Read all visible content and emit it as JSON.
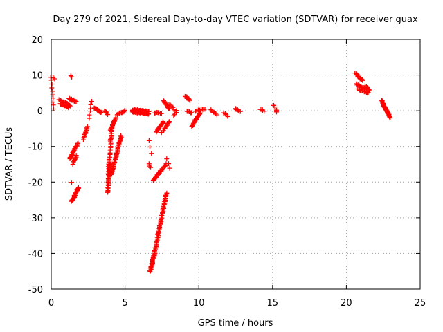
{
  "chart_data": {
    "type": "scatter",
    "title": "Day 279 of 2021, Sidereal Day-to-day VTEC variation (SDTVAR) for receiver guax",
    "xlabel": "GPS time / hours",
    "ylabel": "SDTVAR / TECUs",
    "xlim": [
      0,
      25
    ],
    "ylim": [
      -50,
      20
    ],
    "xticks": [
      0,
      5,
      10,
      15,
      20,
      25
    ],
    "yticks": [
      -50,
      -40,
      -30,
      -20,
      -10,
      0,
      10,
      20
    ],
    "xtick_labels": [
      "0",
      "5",
      "10",
      "15",
      "20",
      "25"
    ],
    "ytick_labels": [
      "-50",
      "-40",
      "-30",
      "-20",
      "-10",
      "0",
      "10",
      "20"
    ],
    "grid": true,
    "marker": "+",
    "color": "#ff0000",
    "segments": [
      {
        "x0": 0.0,
        "x1": 0.15,
        "y0": 9.5,
        "y1": 0.5,
        "n": 10
      },
      {
        "x0": 0.1,
        "x1": 0.2,
        "y0": 9.5,
        "y1": 9.0,
        "n": 3
      },
      {
        "x0": 0.6,
        "x1": 1.2,
        "y0": 2.0,
        "y1": 1.0,
        "n": 30
      },
      {
        "x0": 0.55,
        "x1": 1.3,
        "y0": 3.0,
        "y1": 1.5,
        "n": 20
      },
      {
        "x0": 1.2,
        "x1": 1.7,
        "y0": 3.5,
        "y1": 2.5,
        "n": 15
      },
      {
        "x0": 1.3,
        "x1": 1.4,
        "y0": 9.8,
        "y1": 9.5,
        "n": 2
      },
      {
        "x0": 1.25,
        "x1": 1.8,
        "y0": -13.5,
        "y1": -9.0,
        "n": 25
      },
      {
        "x0": 1.4,
        "x1": 1.85,
        "y0": -25.5,
        "y1": -21.5,
        "n": 25
      },
      {
        "x0": 1.35,
        "x1": 1.4,
        "y0": -20.0,
        "y1": -20.0,
        "n": 1
      },
      {
        "x0": 1.45,
        "x1": 1.7,
        "y0": -15.0,
        "y1": -12.5,
        "n": 8
      },
      {
        "x0": 2.15,
        "x1": 2.45,
        "y0": -8.0,
        "y1": -4.5,
        "n": 15
      },
      {
        "x0": 2.55,
        "x1": 2.75,
        "y0": -2.0,
        "y1": 2.5,
        "n": 6
      },
      {
        "x0": 2.9,
        "x1": 3.4,
        "y0": 0.8,
        "y1": -0.5,
        "n": 15
      },
      {
        "x0": 3.6,
        "x1": 3.8,
        "y0": 0.0,
        "y1": -1.0,
        "n": 5
      },
      {
        "x0": 3.8,
        "x1": 4.0,
        "y0": -23.0,
        "y1": -15.0,
        "n": 35
      },
      {
        "x0": 3.85,
        "x1": 4.1,
        "y0": -18.0,
        "y1": -5.0,
        "n": 30
      },
      {
        "x0": 4.0,
        "x1": 4.4,
        "y0": -5.5,
        "y1": -2.0,
        "n": 20
      },
      {
        "x0": 4.05,
        "x1": 4.75,
        "y0": -18.0,
        "y1": -7.0,
        "n": 45
      },
      {
        "x0": 4.5,
        "x1": 5.0,
        "y0": -1.0,
        "y1": 0.0,
        "n": 10
      },
      {
        "x0": 5.5,
        "x1": 6.6,
        "y0": -0.3,
        "y1": -0.8,
        "n": 45
      },
      {
        "x0": 5.5,
        "x1": 6.6,
        "y0": 0.3,
        "y1": -0.2,
        "n": 40
      },
      {
        "x0": 6.6,
        "x1": 6.8,
        "y0": -8.5,
        "y1": -12.0,
        "n": 3
      },
      {
        "x0": 6.65,
        "x1": 6.7,
        "y0": -15.0,
        "y1": -16.0,
        "n": 3
      },
      {
        "x0": 6.7,
        "x1": 7.0,
        "y0": -45.0,
        "y1": -40.0,
        "n": 25
      },
      {
        "x0": 7.0,
        "x1": 7.8,
        "y0": -40.0,
        "y1": -23.0,
        "n": 60
      },
      {
        "x0": 6.9,
        "x1": 7.8,
        "y0": -19.5,
        "y1": -15.0,
        "n": 25
      },
      {
        "x0": 7.1,
        "x1": 7.6,
        "y0": -6.0,
        "y1": -3.0,
        "n": 18
      },
      {
        "x0": 7.0,
        "x1": 7.5,
        "y0": -0.5,
        "y1": -0.8,
        "n": 10
      },
      {
        "x0": 7.5,
        "x1": 8.0,
        "y0": -6.0,
        "y1": -3.0,
        "n": 12
      },
      {
        "x0": 7.6,
        "x1": 8.0,
        "y0": 2.8,
        "y1": 0.5,
        "n": 12
      },
      {
        "x0": 7.85,
        "x1": 8.05,
        "y0": -13.5,
        "y1": -16.0,
        "n": 3
      },
      {
        "x0": 8.0,
        "x1": 8.4,
        "y0": 2.0,
        "y1": 0.0,
        "n": 6
      },
      {
        "x0": 8.3,
        "x1": 8.5,
        "y0": -1.5,
        "y1": 0.0,
        "n": 4
      },
      {
        "x0": 9.1,
        "x1": 9.4,
        "y0": 4.0,
        "y1": 3.0,
        "n": 10
      },
      {
        "x0": 9.2,
        "x1": 9.5,
        "y0": 0.0,
        "y1": -0.5,
        "n": 6
      },
      {
        "x0": 9.5,
        "x1": 10.1,
        "y0": -4.5,
        "y1": -0.5,
        "n": 20
      },
      {
        "x0": 9.8,
        "x1": 10.4,
        "y0": 0.0,
        "y1": 0.5,
        "n": 8
      },
      {
        "x0": 10.8,
        "x1": 11.2,
        "y0": 0.2,
        "y1": -1.0,
        "n": 8
      },
      {
        "x0": 11.7,
        "x1": 12.0,
        "y0": -0.5,
        "y1": -1.5,
        "n": 6
      },
      {
        "x0": 12.5,
        "x1": 12.8,
        "y0": 0.5,
        "y1": -0.3,
        "n": 6
      },
      {
        "x0": 14.2,
        "x1": 14.4,
        "y0": 0.5,
        "y1": 0.0,
        "n": 6
      },
      {
        "x0": 15.1,
        "x1": 15.3,
        "y0": 1.5,
        "y1": -0.3,
        "n": 5
      },
      {
        "x0": 20.6,
        "x1": 21.1,
        "y0": 10.5,
        "y1": 8.5,
        "n": 15
      },
      {
        "x0": 20.7,
        "x1": 21.3,
        "y0": 7.5,
        "y1": 6.0,
        "n": 15
      },
      {
        "x0": 20.8,
        "x1": 21.5,
        "y0": 6.0,
        "y1": 5.0,
        "n": 12
      },
      {
        "x0": 21.3,
        "x1": 21.6,
        "y0": 7.0,
        "y1": 5.5,
        "n": 8
      },
      {
        "x0": 22.4,
        "x1": 22.95,
        "y0": 3.0,
        "y1": -2.0,
        "n": 30
      },
      {
        "x0": 22.5,
        "x1": 22.9,
        "y0": 1.5,
        "y1": -1.0,
        "n": 15
      }
    ]
  }
}
